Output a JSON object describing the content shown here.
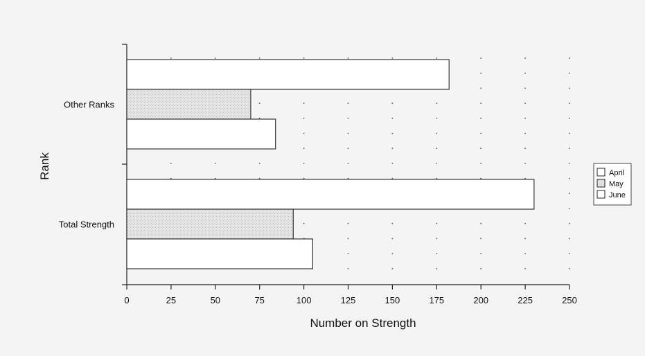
{
  "chart_data": {
    "type": "bar",
    "orientation": "horizontal",
    "categories": [
      "Other Ranks",
      "Total Strength"
    ],
    "series": [
      {
        "name": "April",
        "values": [
          182,
          230
        ],
        "fill": "#ffffff"
      },
      {
        "name": "May",
        "values": [
          70,
          94
        ],
        "fill": "#e2e2e2"
      },
      {
        "name": "June",
        "values": [
          84,
          105
        ],
        "fill": "#ffffff"
      }
    ],
    "xlabel": "Number on Strength",
    "ylabel": "Rank",
    "xlim": [
      0,
      250
    ],
    "xticks": [
      0,
      25,
      50,
      75,
      100,
      125,
      150,
      175,
      200,
      225,
      250
    ],
    "grid": "dotted",
    "legend_position": "right"
  }
}
